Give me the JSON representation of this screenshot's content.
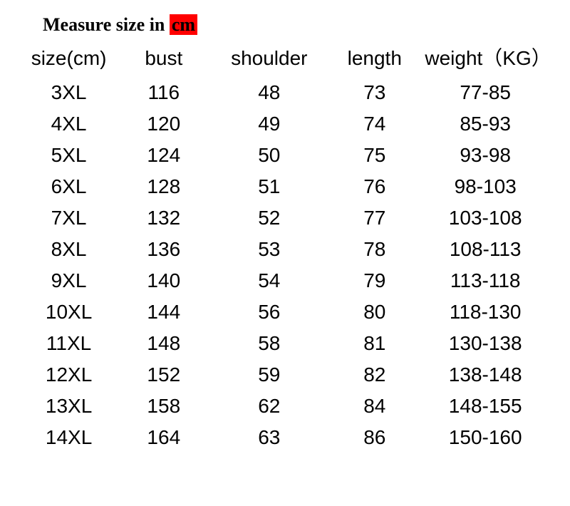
{
  "title": {
    "prefix": "Measure size in ",
    "highlight": "cm",
    "highlight_bg": "#ff0000",
    "text_color": "#000000",
    "fontsize": 26,
    "font_family": "Times New Roman"
  },
  "table": {
    "header_fontsize": 28,
    "cell_fontsize": 28,
    "text_color": "#000000",
    "background_color": "#ffffff",
    "columns": [
      {
        "key": "size",
        "label": "size(cm)",
        "width_pct": 18
      },
      {
        "key": "bust",
        "label": "bust",
        "width_pct": 18
      },
      {
        "key": "shoulder",
        "label": "shoulder",
        "width_pct": 22
      },
      {
        "key": "length",
        "label": "length",
        "width_pct": 18
      },
      {
        "key": "weight",
        "label": "weight（KG）",
        "width_pct": 24
      }
    ],
    "rows": [
      {
        "size": "3XL",
        "bust": "116",
        "shoulder": "48",
        "length": "73",
        "weight": "77-85"
      },
      {
        "size": "4XL",
        "bust": "120",
        "shoulder": "49",
        "length": "74",
        "weight": "85-93"
      },
      {
        "size": "5XL",
        "bust": "124",
        "shoulder": "50",
        "length": "75",
        "weight": "93-98"
      },
      {
        "size": "6XL",
        "bust": "128",
        "shoulder": "51",
        "length": "76",
        "weight": "98-103"
      },
      {
        "size": "7XL",
        "bust": "132",
        "shoulder": "52",
        "length": "77",
        "weight": "103-108"
      },
      {
        "size": "8XL",
        "bust": "136",
        "shoulder": "53",
        "length": "78",
        "weight": "108-113"
      },
      {
        "size": "9XL",
        "bust": "140",
        "shoulder": "54",
        "length": "79",
        "weight": "113-118"
      },
      {
        "size": "10XL",
        "bust": "144",
        "shoulder": "56",
        "length": "80",
        "weight": "118-130"
      },
      {
        "size": "11XL",
        "bust": "148",
        "shoulder": "58",
        "length": "81",
        "weight": "130-138"
      },
      {
        "size": "12XL",
        "bust": "152",
        "shoulder": "59",
        "length": "82",
        "weight": "138-148"
      },
      {
        "size": "13XL",
        "bust": "158",
        "shoulder": "62",
        "length": "84",
        "weight": "148-155"
      },
      {
        "size": "14XL",
        "bust": "164",
        "shoulder": "63",
        "length": "86",
        "weight": "150-160"
      }
    ]
  }
}
